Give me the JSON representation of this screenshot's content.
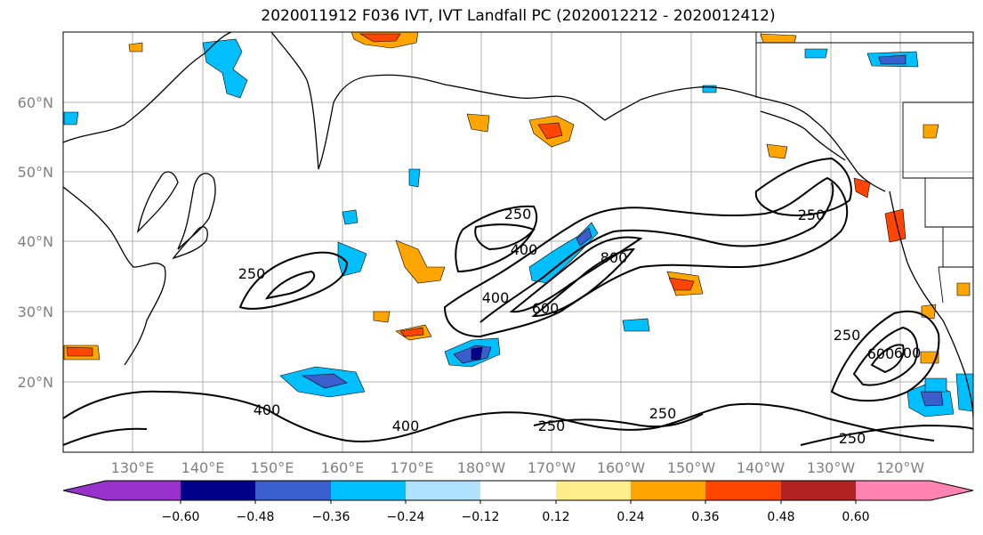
{
  "title": "2020011912 F036 IVT, IVT Landfall PC (2020012212 - 2020012412)",
  "map": {
    "lat_labels": [
      "60°N",
      "50°N",
      "40°N",
      "30°N",
      "20°N"
    ],
    "lon_labels": [
      "130°E",
      "140°E",
      "150°E",
      "160°E",
      "170°E",
      "180°W",
      "170°W",
      "160°W",
      "150°W",
      "140°W",
      "130°W",
      "120°W"
    ],
    "contour_labels": [
      "250",
      "400",
      "600",
      "800"
    ],
    "axis_label_color": "#808080"
  },
  "colorbar": {
    "colors": [
      "#9932cc",
      "#00008b",
      "#3a5fcd",
      "#00bfff",
      "#b0e2ff",
      "#ffffff",
      "#ffec8b",
      "#ffa500",
      "#ff4500",
      "#b22222",
      "#ff83b0"
    ],
    "tick_labels": [
      "−0.60",
      "−0.48",
      "−0.36",
      "−0.24",
      "−0.12",
      "0.12",
      "0.24",
      "0.36",
      "0.48",
      "0.60"
    ]
  }
}
